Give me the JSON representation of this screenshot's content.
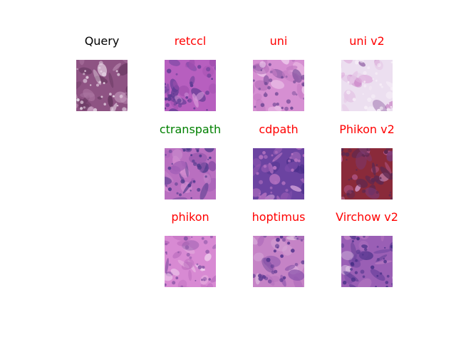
{
  "colors": {
    "query_title": "#000000",
    "correct": "#008000",
    "incorrect": "#ff0000"
  },
  "query": {
    "title": "Query",
    "status": "query",
    "palette": [
      "#8e5383",
      "#6e3d66",
      "#c79cbf",
      "#e2cfe0",
      "#5a2f55",
      "#b07aa6"
    ]
  },
  "results": [
    {
      "title": "retccl",
      "status": "incorrect",
      "palette": [
        "#b75fbf",
        "#9f4eae",
        "#d89ad9",
        "#5e3b93",
        "#7f4aa6",
        "#c07ccc"
      ]
    },
    {
      "title": "uni",
      "status": "incorrect",
      "palette": [
        "#d68fd2",
        "#c47bc4",
        "#f1d3f0",
        "#7a4f9b",
        "#b56fbb",
        "#e8b6e3"
      ]
    },
    {
      "title": "uni v2",
      "status": "incorrect",
      "palette": [
        "#ecdff0",
        "#d99ad4",
        "#c77fc4",
        "#f6eef7",
        "#8d5aa0",
        "#e5c6e6"
      ]
    },
    {
      "title": "ctranspath",
      "status": "correct",
      "palette": [
        "#b96fc0",
        "#8a4ea7",
        "#d58fd1",
        "#4f3a8c",
        "#a35fb6",
        "#c88acb"
      ]
    },
    {
      "title": "cdpath",
      "status": "incorrect",
      "palette": [
        "#6b43a1",
        "#9659b2",
        "#4a2f8a",
        "#b673c2",
        "#d6a5dc",
        "#7d4cab"
      ]
    },
    {
      "title": "Phikon v2",
      "status": "incorrect",
      "palette": [
        "#8a2a3a",
        "#a23c5a",
        "#c068a6",
        "#5e2850",
        "#d59bd0",
        "#7a3a78"
      ]
    },
    {
      "title": "phikon",
      "status": "incorrect",
      "palette": [
        "#d88ad3",
        "#c070c0",
        "#f0d0ee",
        "#8a55a6",
        "#b668bb",
        "#e6b2e0"
      ]
    },
    {
      "title": "hoptimus",
      "status": "incorrect",
      "palette": [
        "#c583c6",
        "#8b54ab",
        "#e7d8ea",
        "#5d3a92",
        "#b16dbb",
        "#d7a8d8"
      ]
    },
    {
      "title": "Virchow v2",
      "status": "incorrect",
      "palette": [
        "#9a5fb5",
        "#6a429d",
        "#c78acb",
        "#4b3289",
        "#b576c0",
        "#dcc3e3"
      ]
    }
  ]
}
